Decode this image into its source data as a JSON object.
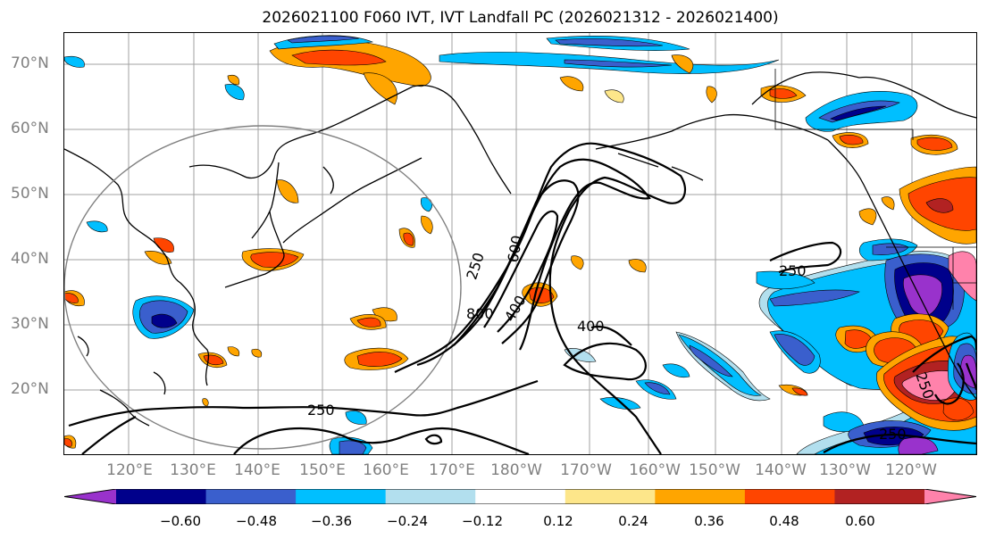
{
  "title": "2026021100 F060 IVT, IVT Landfall PC (2026021312 - 2026021400)",
  "lat_labels": [
    "70°N",
    "60°N",
    "50°N",
    "40°N",
    "30°N",
    "20°N"
  ],
  "lon_labels": [
    "120°E",
    "130°E",
    "140°E",
    "150°E",
    "160°E",
    "170°E",
    "180°W",
    "170°W",
    "160°W",
    "150°W",
    "140°W",
    "130°W",
    "120°W"
  ],
  "contour_labels": [
    "250",
    "600",
    "800",
    "400",
    "400",
    "250",
    "250",
    "250",
    "250"
  ],
  "colorbar": {
    "colors": [
      "#9932cc",
      "#00008b",
      "#3a5fcd",
      "#00bfff",
      "#b2dfee",
      "#ffffff",
      "#fde68a",
      "#ffa500",
      "#ff4500",
      "#b22222",
      "#ff82ab"
    ],
    "tick_labels": [
      "−0.60",
      "−0.48",
      "−0.36",
      "−0.24",
      "−0.12",
      "0.12",
      "0.24",
      "0.36",
      "0.48",
      "0.60"
    ]
  }
}
